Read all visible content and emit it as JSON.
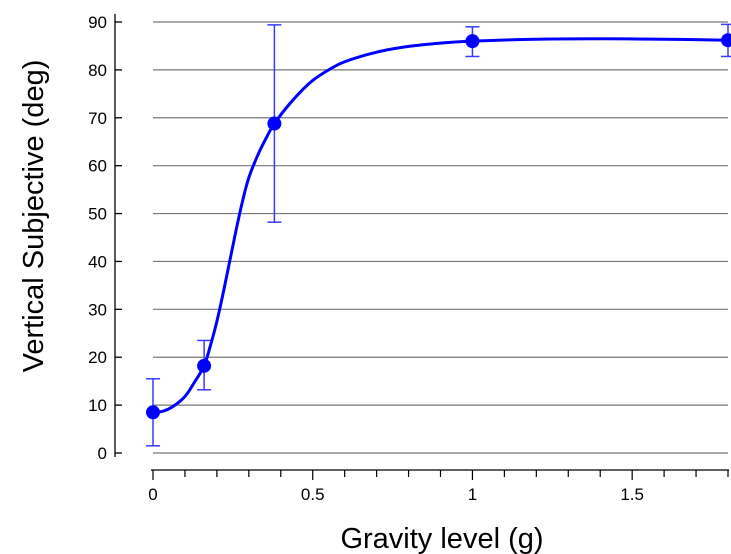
{
  "chart_data": {
    "type": "line",
    "title": "",
    "xlabel": "Gravity level (g)",
    "ylabel": "Vertical Subjective (deg)",
    "xlim": [
      0,
      1.8
    ],
    "ylim": [
      0,
      90
    ],
    "x_ticks": [
      {
        "value": 0,
        "label": "0"
      },
      {
        "value": 0.5,
        "label": "0.5"
      },
      {
        "value": 1,
        "label": "1"
      },
      {
        "value": 1.5,
        "label": "1.5"
      }
    ],
    "y_ticks": [
      {
        "value": 0,
        "label": "0"
      },
      {
        "value": 10,
        "label": "10"
      },
      {
        "value": 20,
        "label": "20"
      },
      {
        "value": 30,
        "label": "30"
      },
      {
        "value": 40,
        "label": "40"
      },
      {
        "value": 50,
        "label": "50"
      },
      {
        "value": 60,
        "label": "60"
      },
      {
        "value": 70,
        "label": "70"
      },
      {
        "value": 80,
        "label": "80"
      },
      {
        "value": 90,
        "label": "90"
      }
    ],
    "grid": {
      "horizontal": true,
      "vertical": false
    },
    "legend": "none",
    "series": [
      {
        "points": [
          {
            "x": 0,
            "y": 8.5,
            "y_err_low": 1.5,
            "y_err_high": 15.5
          },
          {
            "x": 0.16,
            "y": 18.2,
            "y_err_low": 13.2,
            "y_err_high": 23.5
          },
          {
            "x": 0.38,
            "y": 68.8,
            "y_err_low": 48.2,
            "y_err_high": 89.4
          },
          {
            "x": 1,
            "y": 86.0,
            "y_err_low": 82.8,
            "y_err_high": 89.0
          },
          {
            "x": 1.8,
            "y": 86.2,
            "y_err_low": 82.8,
            "y_err_high": 89.5
          }
        ],
        "fit_curve": [
          {
            "x": 0.0,
            "y": 8.5
          },
          {
            "x": 0.03,
            "y": 8.7
          },
          {
            "x": 0.06,
            "y": 9.6
          },
          {
            "x": 0.1,
            "y": 11.8
          },
          {
            "x": 0.13,
            "y": 14.8
          },
          {
            "x": 0.16,
            "y": 18.2
          },
          {
            "x": 0.18,
            "y": 22.5
          },
          {
            "x": 0.2,
            "y": 27.5
          },
          {
            "x": 0.22,
            "y": 33.5
          },
          {
            "x": 0.24,
            "y": 40.0
          },
          {
            "x": 0.26,
            "y": 46.5
          },
          {
            "x": 0.28,
            "y": 52.5
          },
          {
            "x": 0.3,
            "y": 57.5
          },
          {
            "x": 0.33,
            "y": 62.5
          },
          {
            "x": 0.36,
            "y": 66.5
          },
          {
            "x": 0.38,
            "y": 68.8
          },
          {
            "x": 0.42,
            "y": 72.3
          },
          {
            "x": 0.46,
            "y": 75.3
          },
          {
            "x": 0.5,
            "y": 77.8
          },
          {
            "x": 0.55,
            "y": 80.0
          },
          {
            "x": 0.6,
            "y": 81.7
          },
          {
            "x": 0.7,
            "y": 83.7
          },
          {
            "x": 0.8,
            "y": 84.9
          },
          {
            "x": 0.9,
            "y": 85.6
          },
          {
            "x": 1.0,
            "y": 86.0
          },
          {
            "x": 1.2,
            "y": 86.4
          },
          {
            "x": 1.4,
            "y": 86.5
          },
          {
            "x": 1.6,
            "y": 86.4
          },
          {
            "x": 1.8,
            "y": 86.2
          }
        ]
      }
    ],
    "colors": {
      "series": "#0000ff",
      "errorbar": "#3a3aff",
      "grid": "#777777",
      "axis": "#000000"
    }
  }
}
